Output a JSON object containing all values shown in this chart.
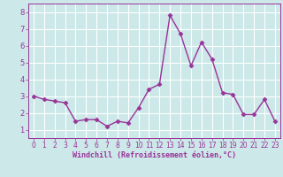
{
  "x": [
    0,
    1,
    2,
    3,
    4,
    5,
    6,
    7,
    8,
    9,
    10,
    11,
    12,
    13,
    14,
    15,
    16,
    17,
    18,
    19,
    20,
    21,
    22,
    23
  ],
  "y": [
    3.0,
    2.8,
    2.7,
    2.6,
    1.5,
    1.6,
    1.6,
    1.2,
    1.5,
    1.4,
    2.3,
    3.4,
    3.7,
    7.8,
    6.7,
    4.8,
    6.2,
    5.2,
    3.2,
    3.1,
    1.9,
    1.9,
    2.8,
    1.5
  ],
  "line_color": "#993399",
  "marker_color": "#993399",
  "bg_color": "#cce8e8",
  "grid_color": "#ffffff",
  "xlabel": "Windchill (Refroidissement éolien,°C)",
  "xlabel_color": "#993399",
  "tick_color": "#993399",
  "ylim": [
    0.5,
    8.5
  ],
  "xlim": [
    -0.5,
    23.5
  ],
  "yticks": [
    1,
    2,
    3,
    4,
    5,
    6,
    7,
    8
  ],
  "xticks": [
    0,
    1,
    2,
    3,
    4,
    5,
    6,
    7,
    8,
    9,
    10,
    11,
    12,
    13,
    14,
    15,
    16,
    17,
    18,
    19,
    20,
    21,
    22,
    23
  ],
  "tick_fontsize": 5.5,
  "xlabel_fontsize": 6.0,
  "linewidth": 1.0,
  "markersize": 2.5
}
